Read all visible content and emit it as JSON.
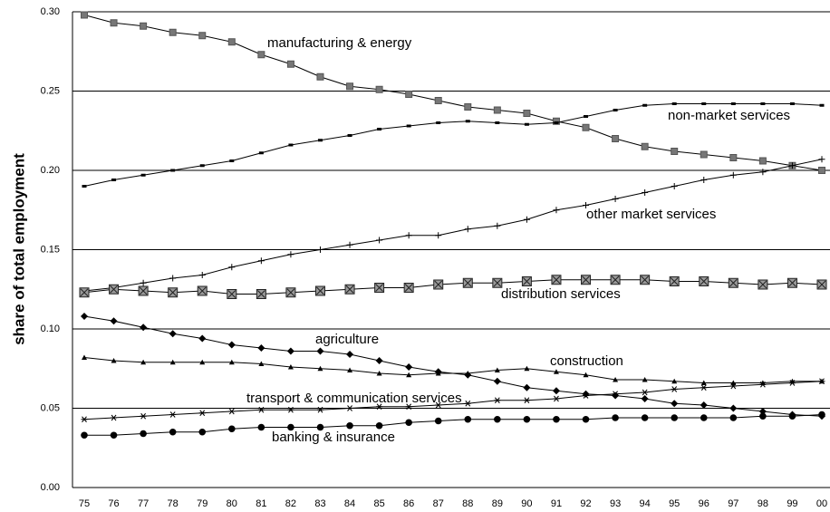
{
  "chart_data": {
    "type": "line",
    "ylabel": "share of total employment",
    "categories": [
      "75",
      "76",
      "77",
      "78",
      "79",
      "80",
      "81",
      "82",
      "83",
      "84",
      "85",
      "86",
      "87",
      "88",
      "89",
      "90",
      "91",
      "92",
      "93",
      "94",
      "95",
      "96",
      "97",
      "98",
      "99",
      "00"
    ],
    "ylim": [
      0,
      0.3
    ],
    "yticks": [
      {
        "value": 0,
        "label": "0.00"
      },
      {
        "value": 0.05,
        "label": "0.05"
      },
      {
        "value": 0.1,
        "label": "0.10"
      },
      {
        "value": 0.15,
        "label": "0.15"
      },
      {
        "value": 0.2,
        "label": "0.20"
      },
      {
        "value": 0.25,
        "label": "0.25"
      },
      {
        "value": 0.3,
        "label": "0.30"
      }
    ],
    "grid": true,
    "series": [
      {
        "name": "manufacturing & energy",
        "color": "#000000",
        "marker": "square",
        "values": [
          0.298,
          0.293,
          0.291,
          0.287,
          0.285,
          0.281,
          0.273,
          0.267,
          0.259,
          0.253,
          0.251,
          0.248,
          0.244,
          0.24,
          0.238,
          0.236,
          0.231,
          0.227,
          0.22,
          0.215,
          0.212,
          0.21,
          0.208,
          0.206,
          0.203,
          0.2
        ]
      },
      {
        "name": "non-market services",
        "color": "#000000",
        "marker": "dash",
        "values": [
          0.19,
          0.194,
          0.197,
          0.2,
          0.203,
          0.206,
          0.211,
          0.216,
          0.219,
          0.222,
          0.226,
          0.228,
          0.23,
          0.231,
          0.23,
          0.229,
          0.23,
          0.234,
          0.238,
          0.241,
          0.242,
          0.242,
          0.242,
          0.242,
          0.242,
          0.241
        ]
      },
      {
        "name": "other market services",
        "color": "#000000",
        "marker": "plus",
        "values": [
          0.124,
          0.126,
          0.129,
          0.132,
          0.134,
          0.139,
          0.143,
          0.147,
          0.15,
          0.153,
          0.156,
          0.159,
          0.159,
          0.163,
          0.165,
          0.169,
          0.175,
          0.178,
          0.182,
          0.186,
          0.19,
          0.194,
          0.197,
          0.199,
          0.203,
          0.207
        ]
      },
      {
        "name": "distribution services",
        "color": "#000000",
        "marker": "xsquare",
        "values": [
          0.123,
          0.125,
          0.124,
          0.123,
          0.124,
          0.122,
          0.122,
          0.123,
          0.124,
          0.125,
          0.126,
          0.126,
          0.128,
          0.129,
          0.129,
          0.13,
          0.131,
          0.131,
          0.131,
          0.131,
          0.13,
          0.13,
          0.129,
          0.128,
          0.129,
          0.128
        ]
      },
      {
        "name": "agriculture",
        "color": "#000000",
        "marker": "diamond",
        "values": [
          0.108,
          0.105,
          0.101,
          0.097,
          0.094,
          0.09,
          0.088,
          0.086,
          0.086,
          0.084,
          0.08,
          0.076,
          0.073,
          0.071,
          0.067,
          0.063,
          0.061,
          0.059,
          0.058,
          0.056,
          0.053,
          0.052,
          0.05,
          0.048,
          0.046,
          0.045
        ]
      },
      {
        "name": "construction",
        "color": "#000000",
        "marker": "triangle",
        "values": [
          0.082,
          0.08,
          0.079,
          0.079,
          0.079,
          0.079,
          0.078,
          0.076,
          0.075,
          0.074,
          0.072,
          0.071,
          0.072,
          0.072,
          0.074,
          0.075,
          0.073,
          0.071,
          0.068,
          0.068,
          0.067,
          0.066,
          0.066,
          0.066,
          0.067,
          0.067
        ]
      },
      {
        "name": "transport & communication services",
        "color": "#000000",
        "marker": "asterisk",
        "values": [
          0.043,
          0.044,
          0.045,
          0.046,
          0.047,
          0.048,
          0.049,
          0.049,
          0.049,
          0.05,
          0.051,
          0.051,
          0.052,
          0.053,
          0.055,
          0.055,
          0.056,
          0.058,
          0.059,
          0.06,
          0.062,
          0.063,
          0.064,
          0.065,
          0.066,
          0.067
        ]
      },
      {
        "name": "banking & insurance",
        "color": "#000000",
        "marker": "circle",
        "values": [
          0.033,
          0.033,
          0.034,
          0.035,
          0.035,
          0.037,
          0.038,
          0.038,
          0.038,
          0.039,
          0.039,
          0.041,
          0.042,
          0.043,
          0.043,
          0.043,
          0.043,
          0.043,
          0.044,
          0.044,
          0.044,
          0.044,
          0.044,
          0.045,
          0.045,
          0.046
        ]
      }
    ]
  }
}
